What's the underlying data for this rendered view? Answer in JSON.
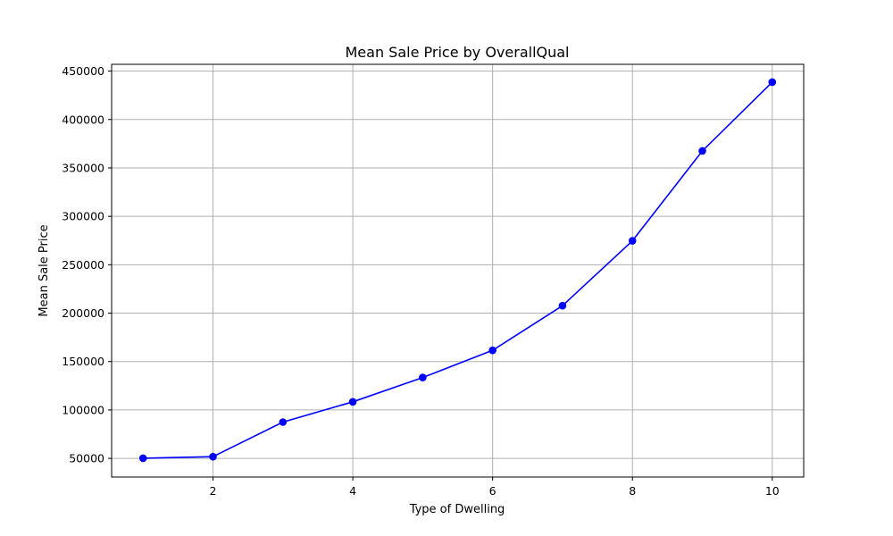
{
  "chart_data": {
    "type": "line",
    "title": "Mean Sale Price by OverallQual",
    "xlabel": "Type of Dwelling",
    "ylabel": "Mean Sale Price",
    "x": [
      1,
      2,
      3,
      4,
      5,
      6,
      7,
      8,
      9,
      10
    ],
    "series": [
      {
        "values": [
          50150,
          51770,
          87474,
          108421,
          133523,
          161603,
          207716,
          274736,
          367513,
          438588
        ]
      }
    ],
    "xlim": [
      0.55,
      10.45
    ],
    "ylim": [
      30728,
      457000
    ],
    "xticks": [
      2,
      4,
      6,
      8,
      10
    ],
    "yticks": [
      50000,
      100000,
      150000,
      200000,
      250000,
      300000,
      350000,
      400000,
      450000
    ],
    "xtick_labels": [
      "2",
      "4",
      "6",
      "8",
      "10"
    ],
    "ytick_labels": [
      "50000",
      "100000",
      "150000",
      "200000",
      "250000",
      "300000",
      "350000",
      "400000",
      "450000"
    ],
    "grid": true,
    "line_color": "#0000ff",
    "marker": "circle"
  }
}
